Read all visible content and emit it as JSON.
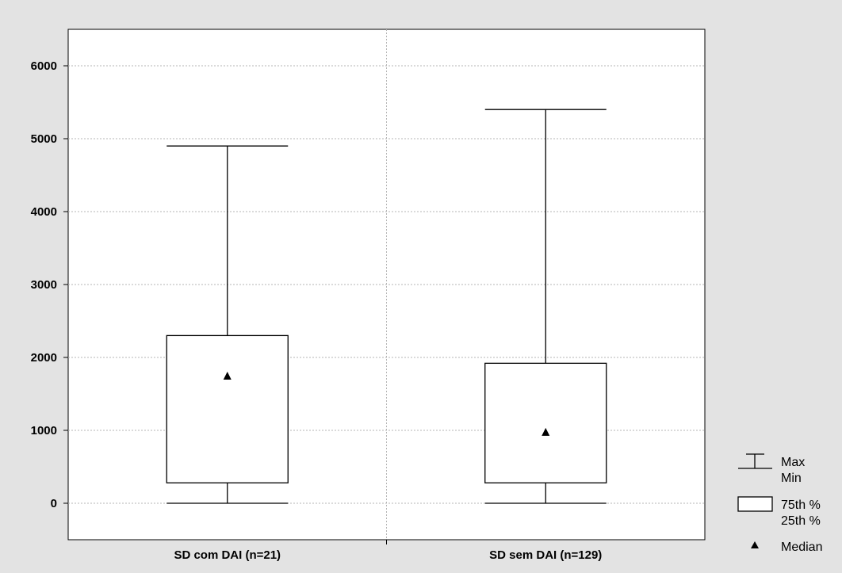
{
  "colors": {
    "background": "#e3e3e3",
    "plot_area": "#ffffff",
    "ink": "#000000",
    "grid": "#b5b5b5"
  },
  "chart_data": {
    "type": "box",
    "title": "",
    "xlabel": "",
    "ylabel": "",
    "ylim": [
      -500,
      6500
    ],
    "yticks": [
      0,
      1000,
      2000,
      3000,
      4000,
      5000,
      6000
    ],
    "grid": true,
    "legend_position": "bottom-right",
    "categories": [
      "SD com DAI (n=21)",
      "SD sem DAI (n=129)"
    ],
    "boxes": [
      {
        "min": 0,
        "q1": 280,
        "median": 1750,
        "q3": 2300,
        "max": 4900
      },
      {
        "min": 0,
        "q1": 280,
        "median": 980,
        "q3": 1920,
        "max": 5400
      }
    ],
    "legend": {
      "whisker": [
        "Max",
        "Min"
      ],
      "box": [
        "75th %",
        "25th %"
      ],
      "median": "Median"
    }
  }
}
